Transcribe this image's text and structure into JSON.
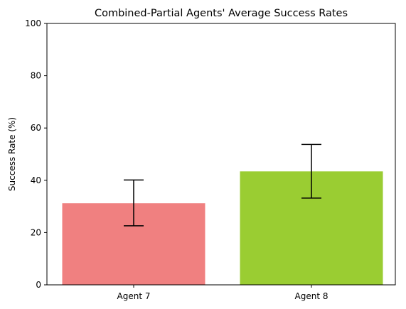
{
  "chart_data": {
    "type": "bar",
    "title": "Combined-Partial Agents' Average Success Rates",
    "xlabel": "",
    "ylabel": "Success Rate (%)",
    "categories": [
      "Agent 7",
      "Agent 8"
    ],
    "values": [
      31.2,
      43.4
    ],
    "error_low": [
      22.6,
      33.2
    ],
    "error_high": [
      40.1,
      53.7
    ],
    "colors": [
      "#f08080",
      "#9acd32"
    ],
    "ylim": [
      0,
      100
    ],
    "yticks": [
      0,
      20,
      40,
      60,
      80,
      100
    ],
    "grid": false,
    "legend": "none"
  }
}
